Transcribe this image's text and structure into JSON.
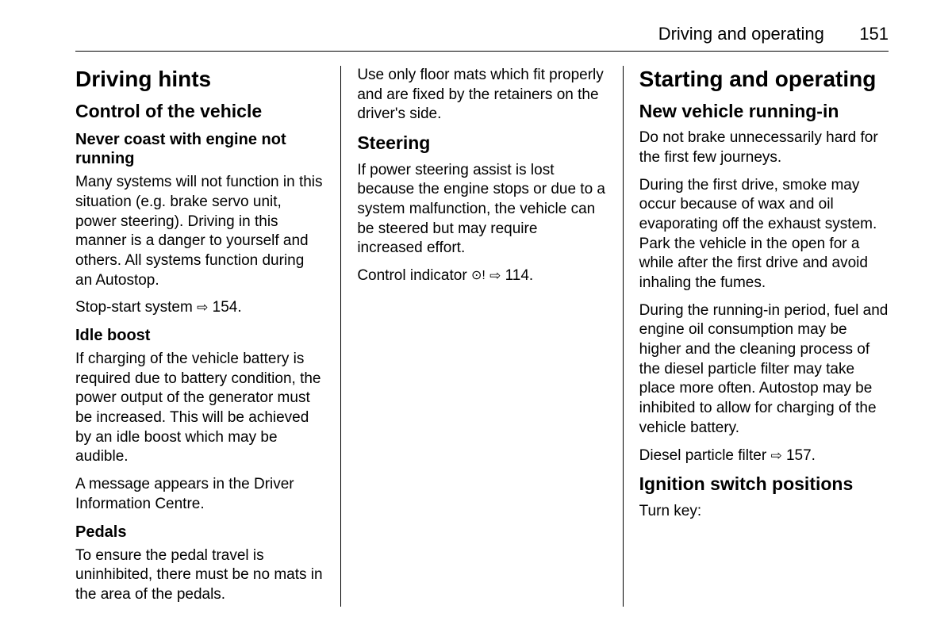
{
  "header": {
    "section": "Driving and operating",
    "pageNumber": "151"
  },
  "column1": {
    "h1": "Driving hints",
    "h2_1": "Control of the vehicle",
    "h3_1": "Never coast with engine not running",
    "p1": "Many systems will not function in this situation (e.g. brake servo unit, power steering). Driving in this manner is a danger to yourself and others. All systems function during an Autostop.",
    "p2_prefix": "Stop-start system ",
    "p2_ref": "154.",
    "h3_2": "Idle boost",
    "p3": "If charging of the vehicle battery is required due to battery condition, the power output of the generator must be increased. This will be achieved by an idle boost which may be audible.",
    "p4": "A message appears in the Driver Information Centre.",
    "h3_3": "Pedals",
    "p5": "To ensure the pedal travel is uninhibited, there must be no mats in the area of the pedals."
  },
  "column2": {
    "p1": "Use only floor mats which fit properly and are fixed by the retainers on the driver's side.",
    "h2_1": "Steering",
    "p2": "If power steering assist is lost because the engine stops or due to a system malfunction, the vehicle can be steered but may require increased effort.",
    "p3_prefix": "Control indicator ",
    "p3_icon": "⊙!",
    "p3_ref": "114."
  },
  "column3": {
    "h1": "Starting and operating",
    "h2_1": "New vehicle running-in",
    "p1": "Do not brake unnecessarily hard for the first few journeys.",
    "p2": "During the first drive, smoke may occur because of wax and oil evaporating off the exhaust system. Park the vehicle in the open for a while after the first drive and avoid inhaling the fumes.",
    "p3": "During the running-in period, fuel and engine oil consumption may be higher and the cleaning process of the diesel particle filter may take place more often. Autostop may be inhibited to allow for charging of the vehicle battery.",
    "p4_prefix": "Diesel particle filter ",
    "p4_ref": "157.",
    "h2_2": "Ignition switch positions",
    "p5": "Turn key:"
  },
  "arrow": "⇨"
}
